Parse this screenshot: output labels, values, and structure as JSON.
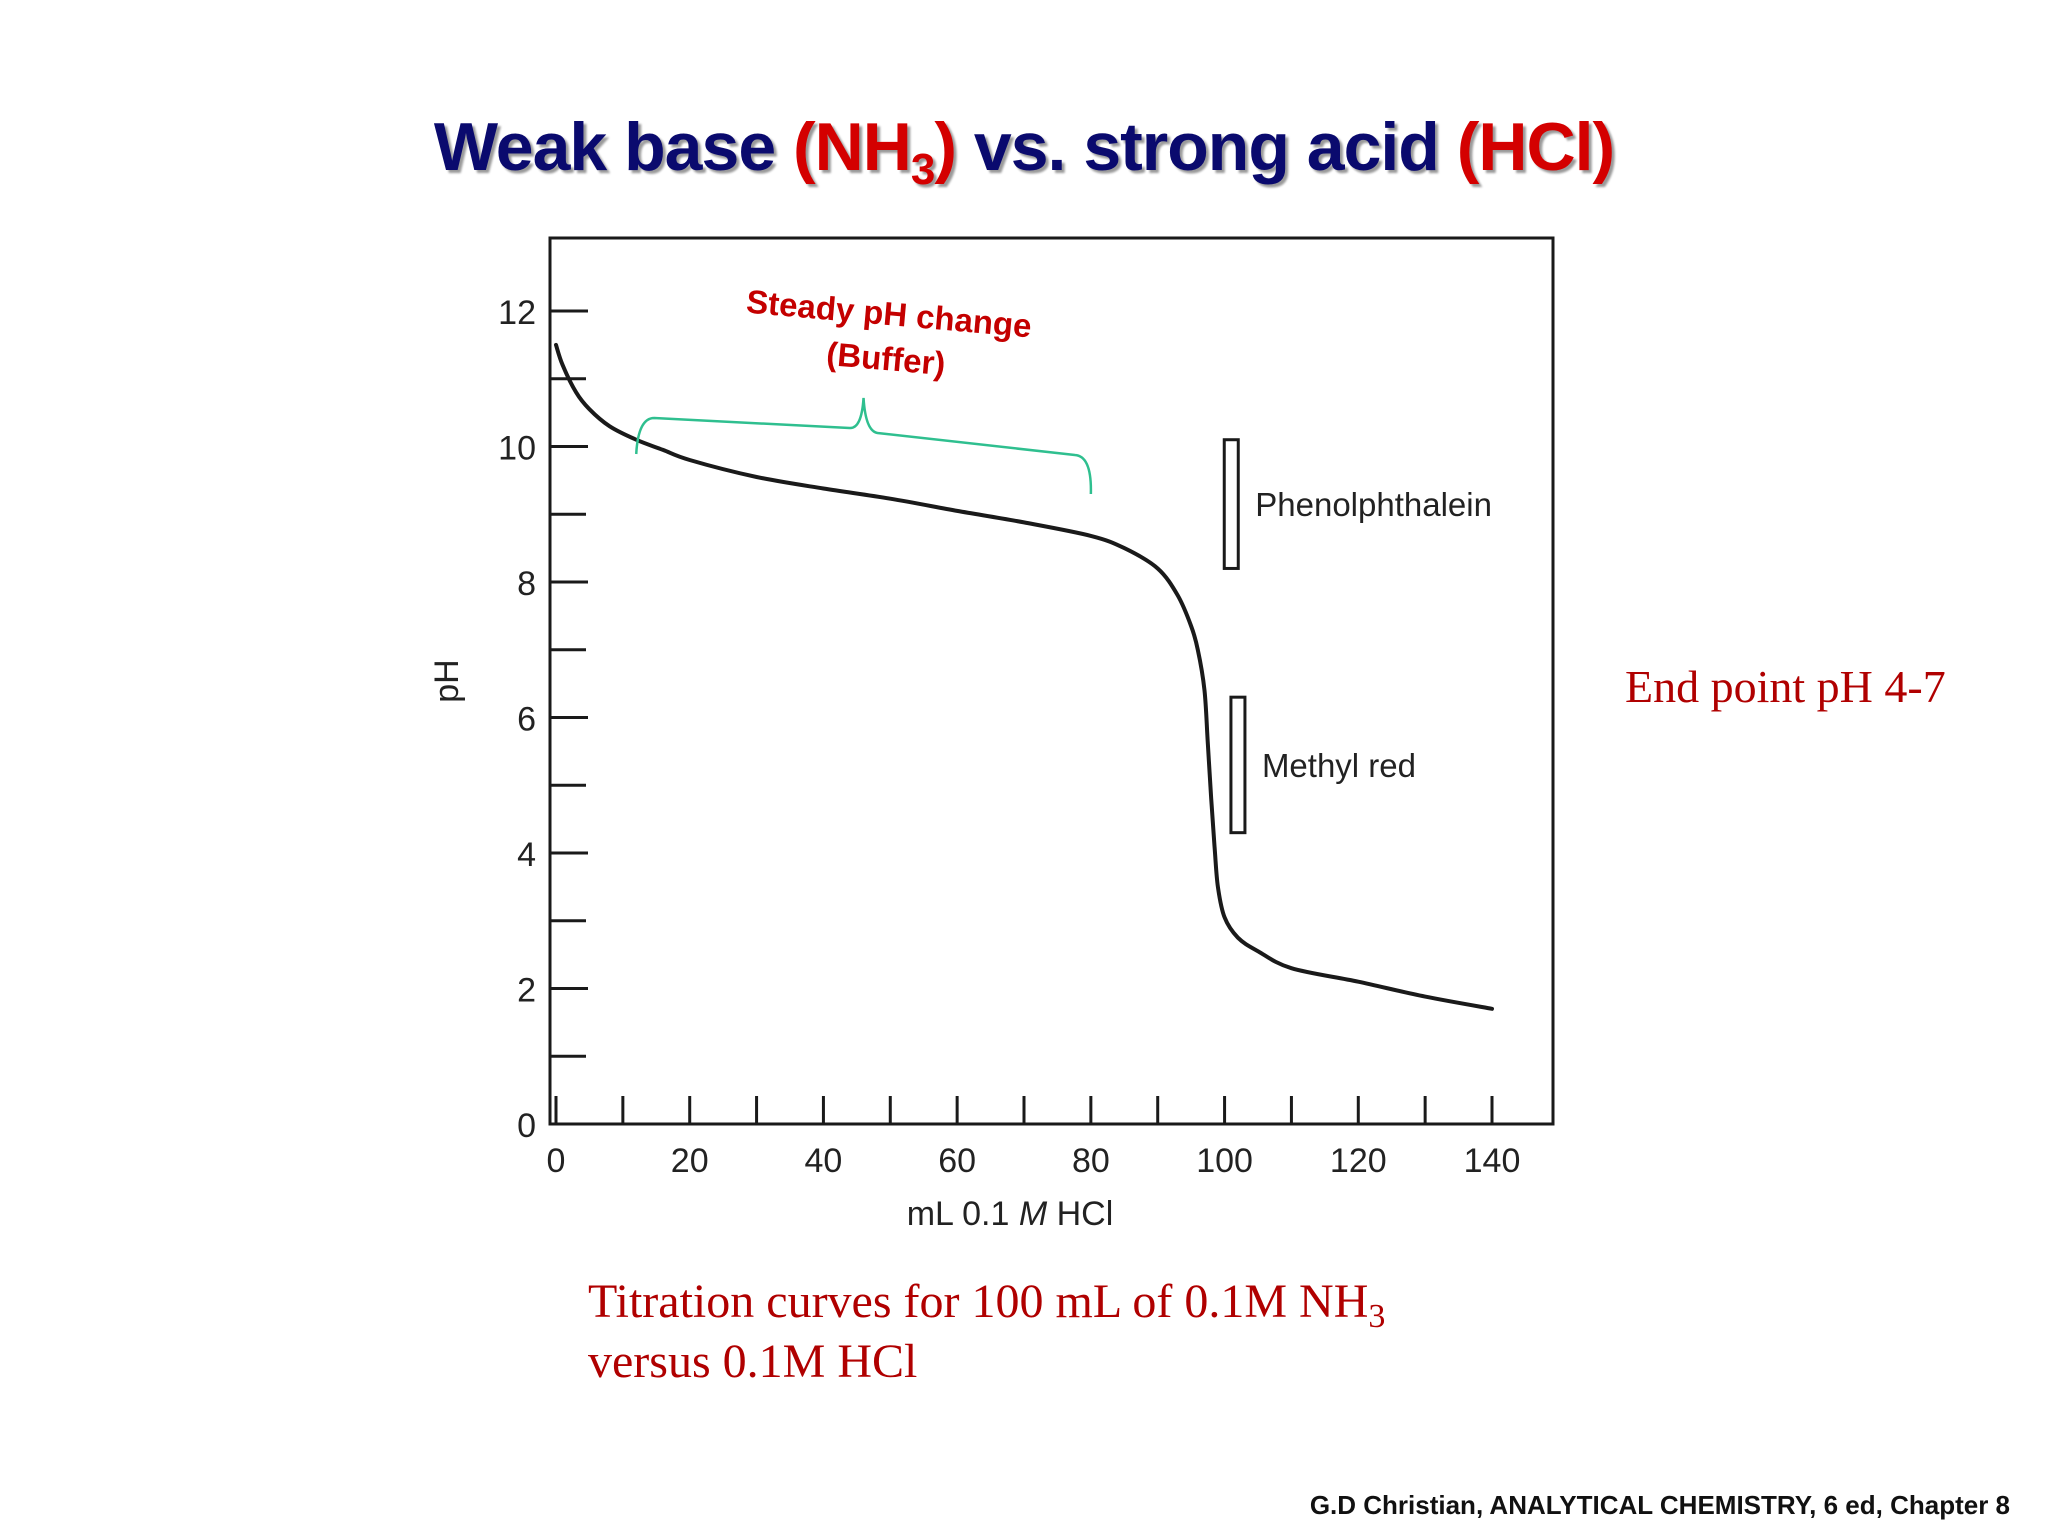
{
  "slide": {
    "title_part1": "Weak base ",
    "title_base": "(NH",
    "title_base_sub": "3",
    "title_base_close": ")",
    "title_part2": " vs. strong acid ",
    "title_acid": "(HCl)",
    "end_point_note": "End point pH 4-7",
    "caption_line1": "Titration curves for 100 mL of 0.1M NH",
    "caption_line1_sub": "3",
    "caption_line2": "versus 0.1M HCl",
    "citation": "G.D Christian, ANALYTICAL CHEMISTRY, 6 ed, Chapter 8"
  },
  "colors": {
    "title": "#0a0a6e",
    "accent_red": "#d40000",
    "note_red": "#b00000",
    "buffer_bracket": "#2fbf8f",
    "curve": "#1a1a1a"
  },
  "chart_data": {
    "type": "line",
    "xlabel_prefix": "mL 0.1 ",
    "xlabel_italic": "M",
    "xlabel_suffix": " HCl",
    "ylabel": "pH",
    "xlim": [
      0,
      148
    ],
    "ylim": [
      0,
      13
    ],
    "x_ticks": [
      0,
      20,
      40,
      60,
      80,
      100,
      120,
      140
    ],
    "x_minor_ticks": [
      10,
      30,
      50,
      70,
      90,
      110,
      130
    ],
    "y_ticks": [
      0,
      2,
      4,
      6,
      8,
      10,
      12
    ],
    "y_minor_ticks": [
      1,
      3,
      5,
      7,
      9,
      11
    ],
    "series": [
      {
        "x": [
          0,
          1,
          3,
          5,
          8,
          12,
          16,
          20,
          30,
          40,
          50,
          60,
          70,
          80,
          85,
          90,
          93,
          95,
          96,
          97,
          97.5,
          98,
          98.5,
          99,
          100,
          102,
          105,
          110,
          120,
          130,
          140
        ],
        "y": [
          11.5,
          11.2,
          10.8,
          10.55,
          10.3,
          10.1,
          9.95,
          9.8,
          9.55,
          9.38,
          9.23,
          9.05,
          8.88,
          8.68,
          8.5,
          8.2,
          7.8,
          7.35,
          7.0,
          6.4,
          5.6,
          4.8,
          4.1,
          3.5,
          3.05,
          2.75,
          2.55,
          2.3,
          2.1,
          1.88,
          1.7
        ]
      }
    ],
    "annotations": {
      "buffer_label_line1": "Steady pH change",
      "buffer_label_line2": "(Buffer)",
      "buffer_range": [
        12,
        80
      ],
      "indicators": [
        {
          "label": "Phenolphthalein",
          "x": 101,
          "range": [
            8.2,
            10.1
          ]
        },
        {
          "label": "Methyl red",
          "x": 102,
          "range": [
            4.3,
            6.3
          ]
        }
      ]
    },
    "grid": false
  }
}
